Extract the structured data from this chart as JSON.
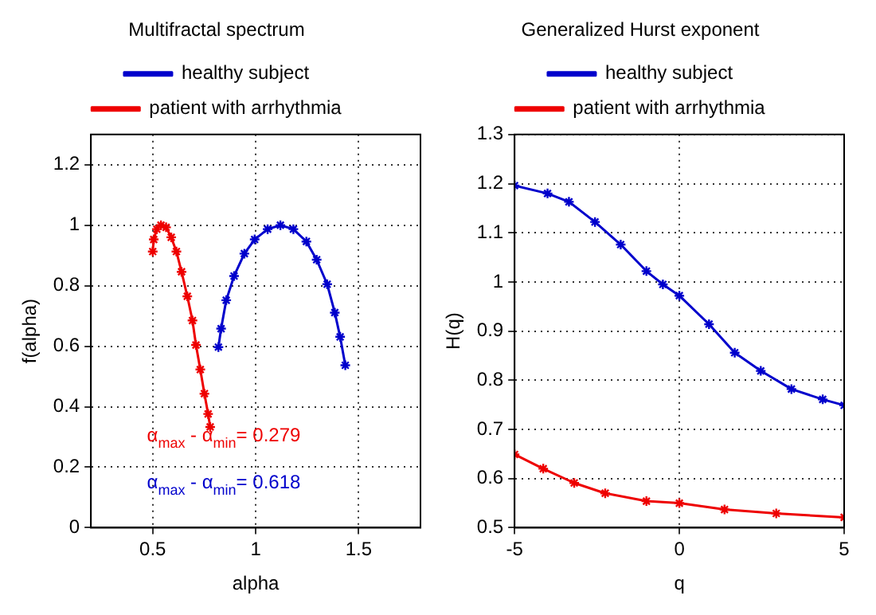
{
  "chart_data": [
    {
      "type": "line",
      "title": "Multifractal spectrum",
      "xlabel": "alpha",
      "ylabel": "f(alpha)",
      "xlim": [
        0.2,
        1.8
      ],
      "xticks": [
        0.5,
        1,
        1.5
      ],
      "ylim": [
        0,
        1.3
      ],
      "yticks": [
        0,
        0.2,
        0.4,
        0.6,
        0.8,
        1,
        1.2
      ],
      "grid": true,
      "legend": "top",
      "marker": "cross",
      "line_style": "solid",
      "series": [
        {
          "name": "healthy subject",
          "color": "#0000cc",
          "x": [
            0.819,
            0.832,
            0.857,
            0.895,
            0.945,
            0.995,
            1.058,
            1.12,
            1.183,
            1.246,
            1.296,
            1.347,
            1.384,
            1.41,
            1.435
          ],
          "values": [
            0.597,
            0.658,
            0.752,
            0.832,
            0.906,
            0.953,
            0.987,
            1.0,
            0.987,
            0.946,
            0.886,
            0.805,
            0.711,
            0.631,
            0.537
          ]
        },
        {
          "name": "patient with arrhythmia",
          "color": "#ee0000",
          "x": [
            0.5,
            0.505,
            0.52,
            0.54,
            0.565,
            0.59,
            0.615,
            0.64,
            0.668,
            0.693,
            0.71,
            0.731,
            0.751,
            0.769,
            0.779
          ],
          "values": [
            0.913,
            0.953,
            0.987,
            1.0,
            0.993,
            0.96,
            0.913,
            0.846,
            0.765,
            0.685,
            0.604,
            0.523,
            0.443,
            0.376,
            0.333
          ]
        }
      ],
      "annotations": [
        "α$_{max}$ - α$_{min}$= 0.279",
        "α$_{max}$ - α$_{min}$= 0.618"
      ]
    },
    {
      "type": "line",
      "title": "Generalized Hurst exponent",
      "xlabel": "q",
      "ylabel": "H(q)",
      "xlim": [
        -5,
        5
      ],
      "xticks": [
        -5,
        0,
        5
      ],
      "ylim": [
        0.5,
        1.3
      ],
      "yticks": [
        0.5,
        0.6,
        0.7,
        0.8,
        0.9,
        1,
        1.1,
        1.2,
        1.3
      ],
      "grid": true,
      "legend": "top",
      "marker": "cross",
      "line_style": "solid",
      "series": [
        {
          "name": "healthy subject",
          "color": "#0000cc",
          "x": [
            -5,
            -4,
            -3.35,
            -2.56,
            -1.78,
            -1,
            -0.5,
            0,
            0.9,
            1.68,
            2.47,
            3.4,
            4.35,
            5
          ],
          "values": [
            1.196,
            1.18,
            1.163,
            1.122,
            1.076,
            1.022,
            0.995,
            0.972,
            0.914,
            0.856,
            0.819,
            0.782,
            0.761,
            0.749
          ]
        },
        {
          "name": "patient with arrhythmia",
          "color": "#ee0000",
          "x": [
            -5,
            -4.13,
            -3.19,
            -2.25,
            -1,
            0,
            1.37,
            2.94,
            5
          ],
          "values": [
            0.649,
            0.62,
            0.591,
            0.57,
            0.554,
            0.55,
            0.537,
            0.529,
            0.521
          ]
        }
      ]
    }
  ]
}
